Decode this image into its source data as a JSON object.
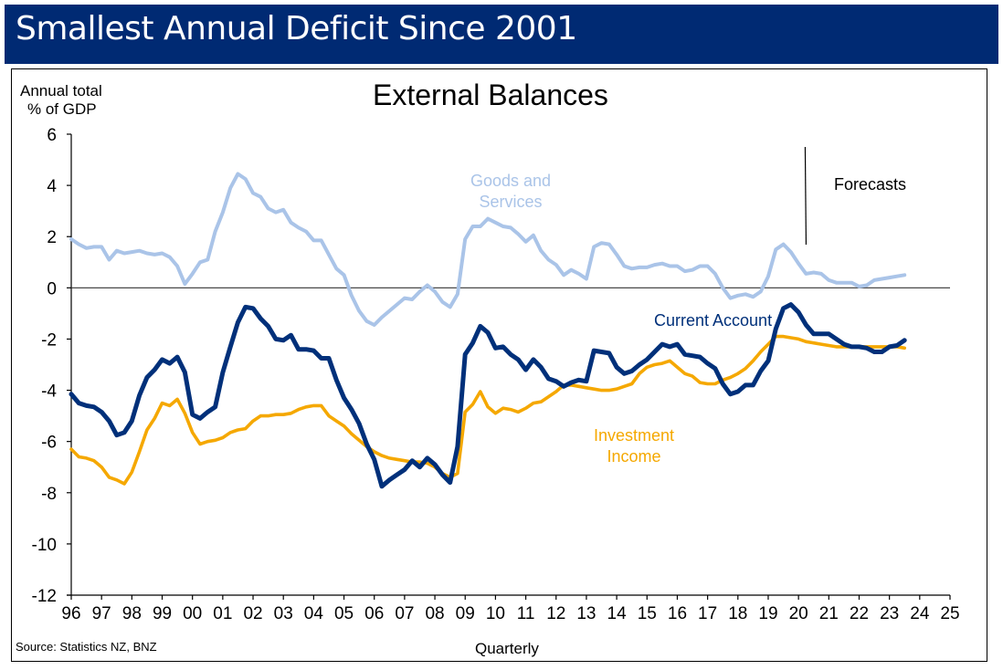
{
  "banner": {
    "title": "Smallest Annual Deficit Since 2001"
  },
  "source": "Source:  Statistics NZ, BNZ",
  "chart_data": {
    "type": "line",
    "title": "External Balances",
    "ylabel_lines": [
      "Annual total",
      "% of GDP"
    ],
    "xlabel": "Quarterly",
    "ylim": [
      -12,
      6
    ],
    "yticks": [
      6,
      4,
      2,
      0,
      -2,
      -4,
      -6,
      -8,
      -10,
      -12
    ],
    "xlim": [
      1996,
      2025
    ],
    "xticks": [
      {
        "value": 1996,
        "label": "96"
      },
      {
        "value": 1997,
        "label": "97"
      },
      {
        "value": 1998,
        "label": "98"
      },
      {
        "value": 1999,
        "label": "99"
      },
      {
        "value": 2000,
        "label": "00"
      },
      {
        "value": 2001,
        "label": "01"
      },
      {
        "value": 2002,
        "label": "02"
      },
      {
        "value": 2003,
        "label": "03"
      },
      {
        "value": 2004,
        "label": "04"
      },
      {
        "value": 2005,
        "label": "05"
      },
      {
        "value": 2006,
        "label": "06"
      },
      {
        "value": 2007,
        "label": "07"
      },
      {
        "value": 2008,
        "label": "08"
      },
      {
        "value": 2009,
        "label": "09"
      },
      {
        "value": 2010,
        "label": "10"
      },
      {
        "value": 2011,
        "label": "11"
      },
      {
        "value": 2012,
        "label": "12"
      },
      {
        "value": 2013,
        "label": "13"
      },
      {
        "value": 2014,
        "label": "14"
      },
      {
        "value": 2015,
        "label": "15"
      },
      {
        "value": 2016,
        "label": "16"
      },
      {
        "value": 2017,
        "label": "17"
      },
      {
        "value": 2018,
        "label": "18"
      },
      {
        "value": 2019,
        "label": "19"
      },
      {
        "value": 2020,
        "label": "20"
      },
      {
        "value": 2021,
        "label": "21"
      },
      {
        "value": 2022,
        "label": "22"
      },
      {
        "value": 2023,
        "label": "23"
      },
      {
        "value": 2024,
        "label": "24"
      },
      {
        "value": 2025,
        "label": "25"
      }
    ],
    "grid": false,
    "zero_line": true,
    "forecast_marker": {
      "x": 2020.25,
      "label": "Forecasts"
    },
    "x_start": 1996,
    "x_step": 0.25,
    "series": [
      {
        "name": "Goods and Services",
        "label_lines": [
          "Goods and",
          "Services"
        ],
        "color": "#aac4e8",
        "values": [
          1.9,
          1.7,
          1.55,
          1.6,
          1.6,
          1.1,
          1.45,
          1.35,
          1.4,
          1.45,
          1.35,
          1.3,
          1.35,
          1.2,
          0.85,
          0.15,
          0.55,
          1.0,
          1.1,
          2.2,
          2.95,
          3.9,
          4.45,
          4.25,
          3.7,
          3.55,
          3.1,
          2.95,
          3.05,
          2.55,
          2.35,
          2.2,
          1.85,
          1.85,
          1.3,
          0.75,
          0.5,
          -0.3,
          -0.9,
          -1.3,
          -1.45,
          -1.15,
          -0.9,
          -0.65,
          -0.4,
          -0.45,
          -0.15,
          0.1,
          -0.15,
          -0.55,
          -0.75,
          -0.25,
          1.9,
          2.4,
          2.4,
          2.7,
          2.55,
          2.4,
          2.35,
          2.1,
          1.8,
          2.05,
          1.45,
          1.1,
          0.9,
          0.5,
          0.7,
          0.55,
          0.35,
          1.6,
          1.75,
          1.7,
          1.3,
          0.85,
          0.75,
          0.8,
          0.8,
          0.9,
          0.95,
          0.85,
          0.85,
          0.65,
          0.7,
          0.85,
          0.85,
          0.55,
          0.0,
          -0.4,
          -0.3,
          -0.25,
          -0.35,
          -0.15,
          0.45,
          1.5,
          1.7,
          1.4,
          0.95,
          0.55,
          0.6,
          0.55,
          0.3,
          0.2,
          0.2,
          0.2,
          0.05,
          0.1,
          0.3,
          0.35,
          0.4,
          0.45,
          0.5
        ]
      },
      {
        "name": "Current Account",
        "label_lines": [
          "Current Account"
        ],
        "color": "#00307a",
        "values": [
          -4.15,
          -4.5,
          -4.6,
          -4.65,
          -4.85,
          -5.2,
          -5.75,
          -5.65,
          -5.2,
          -4.2,
          -3.5,
          -3.2,
          -2.8,
          -2.95,
          -2.7,
          -3.3,
          -4.95,
          -5.1,
          -4.85,
          -4.65,
          -3.3,
          -2.3,
          -1.35,
          -0.75,
          -0.8,
          -1.2,
          -1.5,
          -2.0,
          -2.05,
          -1.85,
          -2.4,
          -2.4,
          -2.45,
          -2.75,
          -2.75,
          -3.6,
          -4.3,
          -4.75,
          -5.3,
          -6.1,
          -6.7,
          -7.75,
          -7.5,
          -7.3,
          -7.1,
          -6.75,
          -7.0,
          -6.65,
          -6.9,
          -7.3,
          -7.6,
          -6.2,
          -2.6,
          -2.15,
          -1.5,
          -1.75,
          -2.35,
          -2.3,
          -2.6,
          -2.8,
          -3.2,
          -2.8,
          -3.1,
          -3.55,
          -3.65,
          -3.85,
          -3.7,
          -3.6,
          -3.65,
          -2.45,
          -2.5,
          -2.55,
          -3.1,
          -3.35,
          -3.25,
          -3.0,
          -2.8,
          -2.5,
          -2.2,
          -2.3,
          -2.2,
          -2.6,
          -2.65,
          -2.7,
          -2.95,
          -3.15,
          -3.75,
          -4.15,
          -4.05,
          -3.8,
          -3.8,
          -3.25,
          -2.85,
          -1.6,
          -0.8,
          -0.65,
          -0.95,
          -1.45,
          -1.8,
          -1.8,
          -1.8,
          -2.0,
          -2.2,
          -2.3,
          -2.3,
          -2.35,
          -2.5,
          -2.5,
          -2.3,
          -2.25,
          -2.05
        ]
      },
      {
        "name": "Investment Income",
        "label_lines": [
          "Investment",
          "Income"
        ],
        "color": "#f5a800",
        "values": [
          -6.3,
          -6.6,
          -6.65,
          -6.75,
          -7.0,
          -7.4,
          -7.5,
          -7.65,
          -7.2,
          -6.4,
          -5.55,
          -5.1,
          -4.5,
          -4.6,
          -4.35,
          -4.9,
          -5.65,
          -6.1,
          -6.0,
          -5.95,
          -5.85,
          -5.65,
          -5.55,
          -5.5,
          -5.2,
          -5.0,
          -5.0,
          -4.95,
          -4.95,
          -4.9,
          -4.75,
          -4.65,
          -4.6,
          -4.6,
          -5.0,
          -5.2,
          -5.4,
          -5.7,
          -5.95,
          -6.2,
          -6.4,
          -6.55,
          -6.65,
          -6.7,
          -6.75,
          -6.8,
          -6.8,
          -6.85,
          -7.0,
          -7.25,
          -7.4,
          -7.25,
          -4.85,
          -4.55,
          -4.05,
          -4.65,
          -4.9,
          -4.7,
          -4.75,
          -4.85,
          -4.7,
          -4.5,
          -4.45,
          -4.25,
          -4.05,
          -3.8,
          -3.8,
          -3.85,
          -3.9,
          -3.95,
          -4.0,
          -4.0,
          -3.95,
          -3.85,
          -3.75,
          -3.35,
          -3.1,
          -3.0,
          -2.95,
          -2.85,
          -3.1,
          -3.35,
          -3.45,
          -3.7,
          -3.75,
          -3.75,
          -3.6,
          -3.5,
          -3.35,
          -3.15,
          -2.85,
          -2.5,
          -2.2,
          -1.9,
          -1.9,
          -1.95,
          -2.0,
          -2.1,
          -2.15,
          -2.2,
          -2.25,
          -2.3,
          -2.3,
          -2.3,
          -2.3,
          -2.3,
          -2.3,
          -2.3,
          -2.3,
          -2.3,
          -2.35
        ]
      }
    ]
  }
}
